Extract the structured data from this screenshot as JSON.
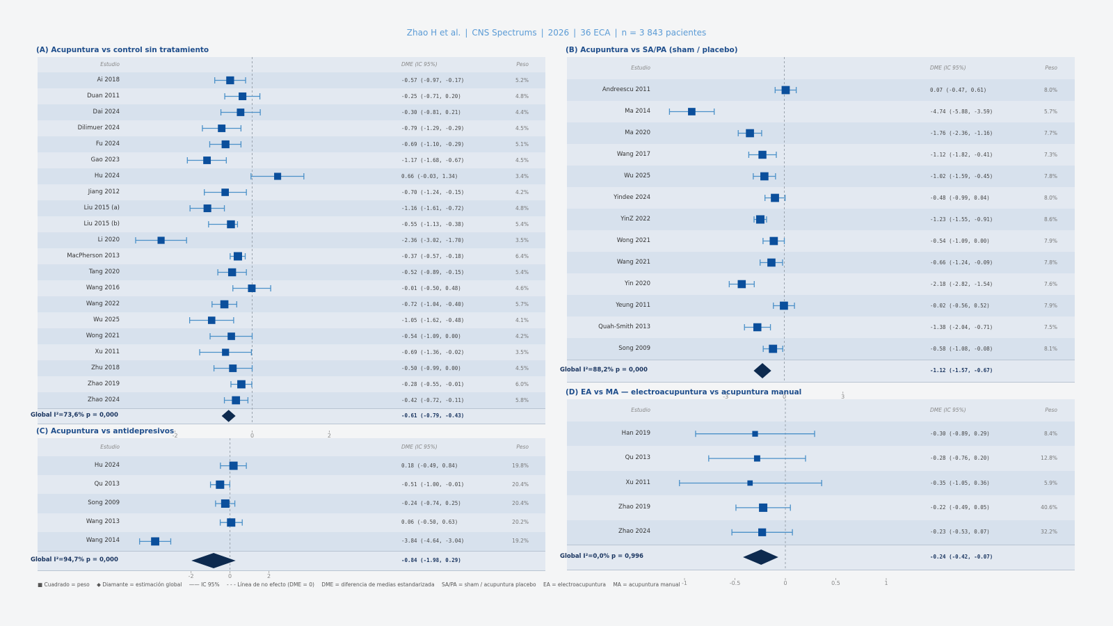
{
  "header": {
    "author": "Zhao H et al.",
    "journal": "CNS Spectrums",
    "year": "2026",
    "trials": "36 ECA",
    "patients": "n = 3 843 pacientes",
    "separator": "|"
  },
  "columns": {
    "study": "Estudio",
    "estimate": "DME (IC 95%)",
    "weight": "Peso"
  },
  "footer": {
    "items": [
      "■ Cuadrado = peso",
      "◆ Diamante = estimación global",
      "—— IC 95%",
      "- - - Línea de no efecto (DME = 0)",
      "DME = diferencia de medias estandarizada",
      "SA/PA = sham / acupuntura placebo",
      "EA = electroacupuntura",
      "MA = acupuntura manual"
    ]
  },
  "colors": {
    "title": "#1f4e8c",
    "square": "#0b4f9c",
    "ci_line": "#4a90c8",
    "diamond": "#0d2a4f",
    "band": "#d7e1ed",
    "bg": "#e3e9f1",
    "header": "#5b9bd5"
  },
  "chart_data": [
    {
      "type": "forest",
      "id": "A",
      "title": "(A) Acupuntura vs control sin tratamiento",
      "xlabel": "DME",
      "xlim": [
        -3.2,
        3.2
      ],
      "xticks": [
        "-2",
        "0",
        "2"
      ],
      "xtick_values": [
        -2,
        0,
        2
      ],
      "studies": [
        {
          "name": "Ai 2018",
          "est": -0.57,
          "lo": -0.97,
          "hi": -0.17,
          "text": "-0.57 (-0.97, -0.17)",
          "weight": "5.2%"
        },
        {
          "name": "Duan 2011",
          "est": -0.25,
          "lo": -0.71,
          "hi": 0.2,
          "text": "-0.25 (-0.71, 0.20)",
          "weight": "4.8%"
        },
        {
          "name": "Dai 2024",
          "est": -0.3,
          "lo": -0.81,
          "hi": 0.21,
          "text": "-0.30 (-0.81, 0.21)",
          "weight": "4.4%"
        },
        {
          "name": "Dilimuer 2024",
          "est": -0.79,
          "lo": -1.29,
          "hi": -0.29,
          "text": "-0.79 (-1.29, -0.29)",
          "weight": "4.5%"
        },
        {
          "name": "Fu 2024",
          "est": -0.69,
          "lo": -1.1,
          "hi": -0.29,
          "text": "-0.69 (-1.10, -0.29)",
          "weight": "5.1%"
        },
        {
          "name": "Gao 2023",
          "est": -1.17,
          "lo": -1.68,
          "hi": -0.67,
          "text": "-1.17 (-1.68, -0.67)",
          "weight": "4.5%"
        },
        {
          "name": "Hu 2024",
          "est": 0.66,
          "lo": -0.03,
          "hi": 1.34,
          "text": "0.66 (-0.03, 1.34)",
          "weight": "3.4%"
        },
        {
          "name": "Jiang 2012",
          "est": -0.7,
          "lo": -1.24,
          "hi": -0.15,
          "text": "-0.70 (-1.24, -0.15)",
          "weight": "4.2%"
        },
        {
          "name": "Liu 2015 (a)",
          "est": -1.16,
          "lo": -1.61,
          "hi": -0.72,
          "text": "-1.16 (-1.61, -0.72)",
          "weight": "4.8%"
        },
        {
          "name": "Liu 2015 (b)",
          "est": -0.55,
          "lo": -1.13,
          "hi": -0.38,
          "text": "-0.55 (-1.13, -0.38)",
          "weight": "5.4%"
        },
        {
          "name": "Li 2020",
          "est": -2.36,
          "lo": -3.02,
          "hi": -1.7,
          "text": "-2.36 (-3.02, -1.70)",
          "weight": "3.5%"
        },
        {
          "name": "MacPherson 2013",
          "est": -0.37,
          "lo": -0.57,
          "hi": -0.18,
          "text": "-0.37 (-0.57, -0.18)",
          "weight": "6.4%"
        },
        {
          "name": "Tang 2020",
          "est": -0.52,
          "lo": -0.89,
          "hi": -0.15,
          "text": "-0.52 (-0.89, -0.15)",
          "weight": "5.4%"
        },
        {
          "name": "Wang 2016",
          "est": -0.01,
          "lo": -0.5,
          "hi": 0.48,
          "text": "-0.01 (-0.50, 0.48)",
          "weight": "4.6%"
        },
        {
          "name": "Wang 2022",
          "est": -0.72,
          "lo": -1.04,
          "hi": -0.4,
          "text": "-0.72 (-1.04, -0.40)",
          "weight": "5.7%"
        },
        {
          "name": "Wu 2025",
          "est": -1.05,
          "lo": -1.62,
          "hi": -0.48,
          "text": "-1.05 (-1.62, -0.48)",
          "weight": "4.1%"
        },
        {
          "name": "Wong 2021",
          "est": -0.54,
          "lo": -1.09,
          "hi": 0.0,
          "text": "-0.54 (-1.09, 0.00)",
          "weight": "4.2%"
        },
        {
          "name": "Xu 2011",
          "est": -0.69,
          "lo": -1.36,
          "hi": -0.02,
          "text": "-0.69 (-1.36, -0.02)",
          "weight": "3.5%"
        },
        {
          "name": "Zhu 2018",
          "est": -0.5,
          "lo": -0.99,
          "hi": 0.0,
          "text": "-0.50 (-0.99, 0.00)",
          "weight": "4.5%"
        },
        {
          "name": "Zhao 2019",
          "est": -0.28,
          "lo": -0.55,
          "hi": -0.01,
          "text": "-0.28 (-0.55, -0.01)",
          "weight": "6.0%"
        },
        {
          "name": "Zhao 2024",
          "est": -0.42,
          "lo": -0.72,
          "hi": -0.11,
          "text": "-0.42 (-0.72, -0.11)",
          "weight": "5.8%"
        }
      ],
      "overall": {
        "label": "Global  I²=73,6%  p = 0,000",
        "est": -0.61,
        "lo": -0.79,
        "hi": -0.43,
        "text": "-0.61 (-0.79, -0.43)"
      }
    },
    {
      "type": "forest",
      "id": "B",
      "title": "(B) Acupuntura vs SA/PA (sham / placebo)",
      "xlabel": "DME",
      "xlim": [
        -6.5,
        6.5
      ],
      "xticks": [
        "-3",
        "0",
        "3"
      ],
      "xtick_values": [
        -3,
        0,
        3
      ],
      "studies": [
        {
          "name": "Andreescu 2011",
          "est": 0.07,
          "lo": -0.47,
          "hi": 0.61,
          "text": "0.07 (-0.47, 0.61)",
          "weight": "8.0%"
        },
        {
          "name": "Ma 2014",
          "est": -4.74,
          "lo": -5.88,
          "hi": -3.59,
          "text": "-4.74 (-5.88, -3.59)",
          "weight": "5.7%"
        },
        {
          "name": "Ma 2020",
          "est": -1.76,
          "lo": -2.36,
          "hi": -1.16,
          "text": "-1.76 (-2.36, -1.16)",
          "weight": "7.7%"
        },
        {
          "name": "Wang 2017",
          "est": -1.12,
          "lo": -1.82,
          "hi": -0.41,
          "text": "-1.12 (-1.82, -0.41)",
          "weight": "7.3%"
        },
        {
          "name": "Wu 2025",
          "est": -1.02,
          "lo": -1.59,
          "hi": -0.45,
          "text": "-1.02 (-1.59, -0.45)",
          "weight": "7.8%"
        },
        {
          "name": "Yindee 2024",
          "est": -0.48,
          "lo": -0.99,
          "hi": 0.04,
          "text": "-0.48 (-0.99, 0.04)",
          "weight": "8.0%"
        },
        {
          "name": "YinZ 2022",
          "est": -1.23,
          "lo": -1.55,
          "hi": -0.91,
          "text": "-1.23 (-1.55, -0.91)",
          "weight": "8.6%"
        },
        {
          "name": "Wong 2021",
          "est": -0.54,
          "lo": -1.09,
          "hi": 0.0,
          "text": "-0.54 (-1.09, 0.00)",
          "weight": "7.9%"
        },
        {
          "name": "Wang 2021",
          "est": -0.66,
          "lo": -1.24,
          "hi": -0.09,
          "text": "-0.66 (-1.24, -0.09)",
          "weight": "7.8%"
        },
        {
          "name": "Yin 2020",
          "est": -2.18,
          "lo": -2.82,
          "hi": -1.54,
          "text": "-2.18 (-2.82, -1.54)",
          "weight": "7.6%"
        },
        {
          "name": "Yeung 2011",
          "est": -0.02,
          "lo": -0.56,
          "hi": 0.52,
          "text": "-0.02 (-0.56, 0.52)",
          "weight": "7.9%"
        },
        {
          "name": "Quah-Smith 2013",
          "est": -1.38,
          "lo": -2.04,
          "hi": -0.71,
          "text": "-1.38 (-2.04, -0.71)",
          "weight": "7.5%"
        },
        {
          "name": "Song 2009",
          "est": -0.58,
          "lo": -1.08,
          "hi": -0.08,
          "text": "-0.58 (-1.08, -0.08)",
          "weight": "8.1%"
        }
      ],
      "overall": {
        "label": "Global  I²=88,2%  p = 0,000",
        "est": -1.12,
        "lo": -1.57,
        "hi": -0.67,
        "text": "-1.12 (-1.57, -0.67)"
      }
    },
    {
      "type": "forest",
      "id": "C",
      "title": "(C) Acupuntura vs antidepresivos",
      "xlabel": "DME",
      "xlim": [
        -5.2,
        2.3
      ],
      "xticks": [
        "-2",
        "0",
        "2"
      ],
      "xtick_values": [
        -2,
        0,
        2
      ],
      "studies": [
        {
          "name": "Hu 2024",
          "est": 0.18,
          "lo": -0.49,
          "hi": 0.84,
          "text": "0.18 (-0.49, 0.84)",
          "weight": "19.8%"
        },
        {
          "name": "Qu 2013",
          "est": -0.51,
          "lo": -1.0,
          "hi": -0.01,
          "text": "-0.51 (-1.00, -0.01)",
          "weight": "20.4%"
        },
        {
          "name": "Song 2009",
          "est": -0.24,
          "lo": -0.74,
          "hi": 0.25,
          "text": "-0.24 (-0.74, 0.25)",
          "weight": "20.4%"
        },
        {
          "name": "Wang 2013",
          "est": 0.06,
          "lo": -0.5,
          "hi": 0.63,
          "text": "0.06 (-0.50, 0.63)",
          "weight": "20.2%"
        },
        {
          "name": "Wang 2014",
          "est": -3.84,
          "lo": -4.64,
          "hi": -3.04,
          "text": "-3.84 (-4.64, -3.04)",
          "weight": "19.2%"
        }
      ],
      "overall": {
        "label": "Global  I²=94,7%  p = 0,000",
        "est": -0.84,
        "lo": -1.98,
        "hi": 0.29,
        "text": "-0.84 (-1.98, 0.29)"
      }
    },
    {
      "type": "forest",
      "id": "D",
      "title": "(D) EA vs MA — electroacupuntura vs acupuntura manual",
      "xlabel": "DME",
      "xlim": [
        -1.2,
        1.2
      ],
      "xticks": [
        "-1",
        "-0.5",
        "0",
        "0.5",
        "1"
      ],
      "xtick_values": [
        -1,
        -0.5,
        0,
        0.5,
        1
      ],
      "studies": [
        {
          "name": "Han 2019",
          "est": -0.3,
          "lo": -0.89,
          "hi": 0.29,
          "text": "-0.30 (-0.89, 0.29)",
          "weight": "8.4%"
        },
        {
          "name": "Qu 2013",
          "est": -0.28,
          "lo": -0.76,
          "hi": 0.2,
          "text": "-0.28 (-0.76, 0.20)",
          "weight": "12.8%"
        },
        {
          "name": "Xu 2011",
          "est": -0.35,
          "lo": -1.05,
          "hi": 0.36,
          "text": "-0.35 (-1.05, 0.36)",
          "weight": "5.9%"
        },
        {
          "name": "Zhao 2019",
          "est": -0.22,
          "lo": -0.49,
          "hi": 0.05,
          "text": "-0.22 (-0.49, 0.05)",
          "weight": "40.6%"
        },
        {
          "name": "Zhao 2024",
          "est": -0.23,
          "lo": -0.53,
          "hi": 0.07,
          "text": "-0.23 (-0.53, 0.07)",
          "weight": "32.2%"
        }
      ],
      "overall": {
        "label": "Global  I²=0,0%  p = 0,996",
        "est": -0.24,
        "lo": -0.42,
        "hi": -0.07,
        "text": "-0.24 (-0.42, -0.07)"
      }
    }
  ]
}
